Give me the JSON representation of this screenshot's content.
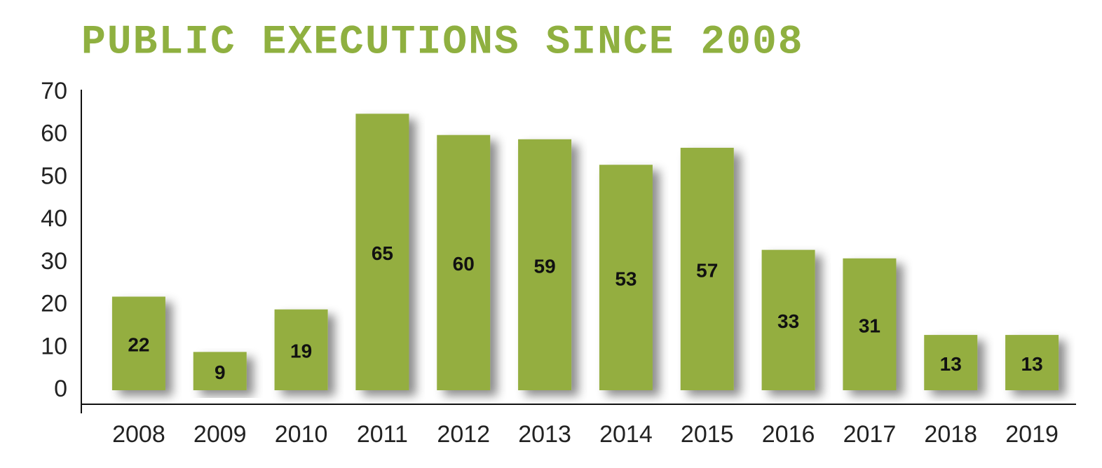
{
  "chart_data": {
    "type": "bar",
    "title": "PUBLIC EXECUTIONS SINCE 2008",
    "categories": [
      "2008",
      "2009",
      "2010",
      "2011",
      "2012",
      "2013",
      "2014",
      "2015",
      "2016",
      "2017",
      "2018",
      "2019"
    ],
    "values": [
      22,
      9,
      19,
      65,
      60,
      59,
      53,
      57,
      33,
      31,
      13,
      13
    ],
    "color": "#94ae3f",
    "title_color": "#8fb040",
    "ylim": [
      0,
      70
    ],
    "yticks": [
      0,
      10,
      20,
      30,
      40,
      50,
      60,
      70
    ],
    "grid": false
  }
}
